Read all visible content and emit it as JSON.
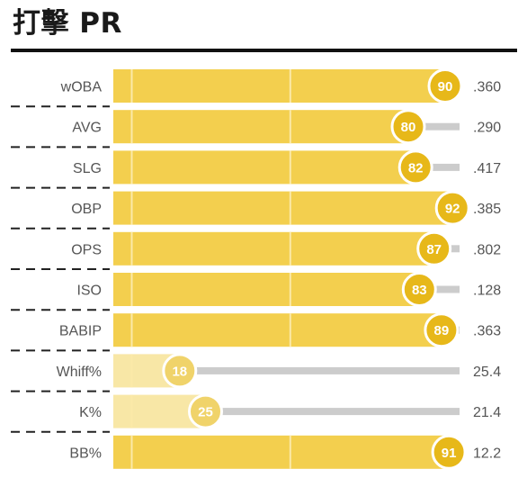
{
  "header": {
    "title": "打擊 PR"
  },
  "chart_data": {
    "type": "bar",
    "title": "打擊 PR",
    "xlim": [
      0,
      100
    ],
    "categories": [
      "wOBA",
      "AVG",
      "SLG",
      "OBP",
      "OPS",
      "ISO",
      "BABIP",
      "Whiff%",
      "K%",
      "BB%"
    ],
    "percentiles": [
      90,
      80,
      82,
      92,
      87,
      83,
      89,
      18,
      25,
      91
    ],
    "stat_values": [
      ".360",
      ".290",
      ".417",
      ".385",
      ".802",
      ".128",
      ".363",
      "25.4",
      "21.4",
      "12.2"
    ],
    "colors": {
      "bar": "#f3cf4e",
      "bar_light": "#f8e7a6",
      "badge": "#e7b819",
      "badge_light": "#f0d36a",
      "track": "#cccccc"
    }
  }
}
